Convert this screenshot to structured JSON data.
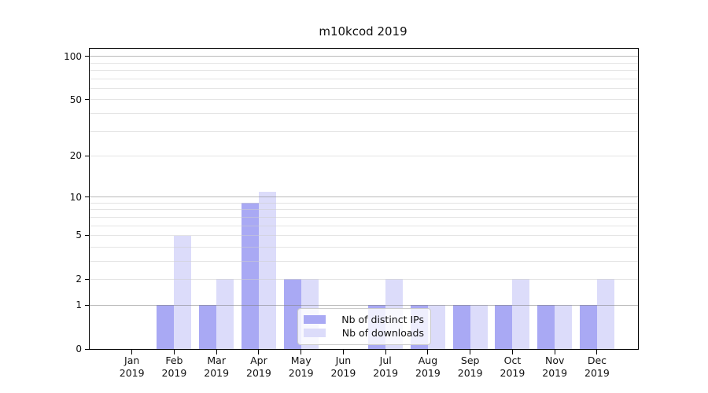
{
  "chart_data": {
    "type": "bar",
    "title": "m10kcod 2019",
    "x": {
      "categories": [
        "Jan",
        "Feb",
        "Mar",
        "Apr",
        "May",
        "Jun",
        "Jul",
        "Aug",
        "Sep",
        "Oct",
        "Nov",
        "Dec"
      ],
      "year_label": "2019"
    },
    "series": [
      {
        "name": "Nb of distinct IPs",
        "color": "#a9a9f4",
        "values": [
          0,
          1,
          1,
          9,
          2,
          0,
          1,
          1,
          1,
          1,
          1,
          1
        ]
      },
      {
        "name": "Nb of downloads",
        "color": "#dcdcfa",
        "values": [
          0,
          5,
          2,
          11,
          2,
          0,
          2,
          1,
          1,
          2,
          1,
          2
        ]
      }
    ],
    "yscale": "log10(1+y)",
    "ylim": [
      0,
      113
    ],
    "yticks": [
      0,
      1,
      2,
      5,
      10,
      20,
      50,
      100
    ],
    "grid": {
      "on": true,
      "major_at": [
        1,
        10,
        100
      ],
      "minor_at": [
        2,
        3,
        4,
        5,
        6,
        7,
        8,
        9,
        20,
        30,
        40,
        50,
        60,
        70,
        80,
        90
      ]
    },
    "legend": {
      "location": "inside plot, lower center-right"
    }
  },
  "style": {
    "background": "#ffffff",
    "axis_color": "#000000",
    "major_grid_color": "#c6c6c6",
    "minor_grid_color": "#ebebeb",
    "bar_color_distinct_ips": "#a9a9f4",
    "bar_color_downloads": "#dcdcfa"
  }
}
